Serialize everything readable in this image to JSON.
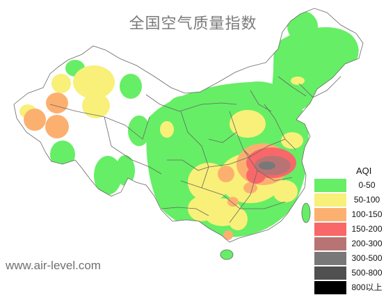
{
  "title": "全国空气质量指数",
  "watermark": "www.air-level.com",
  "legend": {
    "title": "AQI",
    "items": [
      {
        "label": "0-50",
        "color": "#66ee66"
      },
      {
        "label": "50-100",
        "color": "#f8f078"
      },
      {
        "label": "100-150",
        "color": "#fcb070"
      },
      {
        "label": "150-200",
        "color": "#f86868"
      },
      {
        "label": "200-300",
        "color": "#b87474"
      },
      {
        "label": "300-500",
        "color": "#787878"
      },
      {
        "label": "500-800",
        "color": "#505050"
      },
      {
        "label": "800以上",
        "color": "#000000"
      }
    ]
  },
  "colors": {
    "border": "#666666",
    "good": "#66ee66",
    "moderate": "#f8f078",
    "sensitive": "#fcb070",
    "unhealthy": "#f86868",
    "very_unhealthy": "#b87474",
    "hazardous": "#787878"
  }
}
